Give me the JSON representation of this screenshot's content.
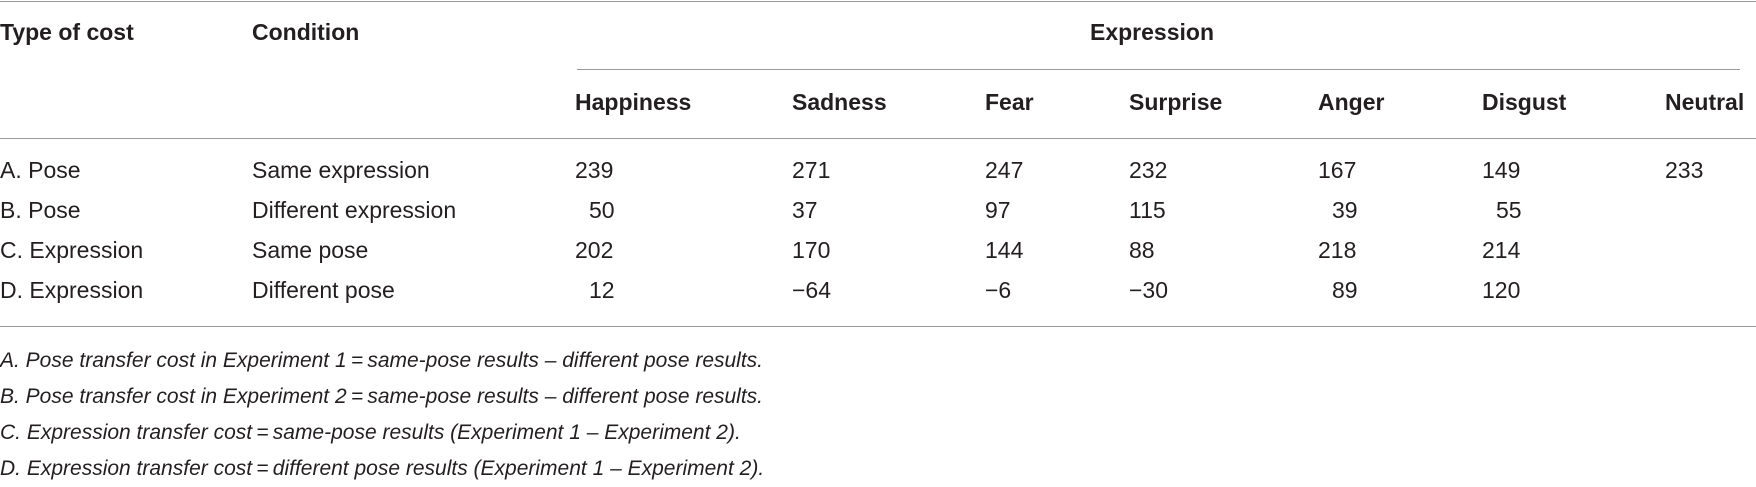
{
  "table": {
    "header": {
      "type_of_cost": "Type of cost",
      "condition": "Condition",
      "expression_group": "Expression",
      "expressions": [
        "Happiness",
        "Sadness",
        "Fear",
        "Surprise",
        "Anger",
        "Disgust",
        "Neutral"
      ]
    },
    "rows": [
      {
        "type": "A. Pose",
        "condition": "Same expression",
        "values": [
          "239",
          "271",
          "247",
          "232",
          "167",
          "149",
          "233"
        ]
      },
      {
        "type": "B. Pose",
        "condition": "Different expression",
        "values": [
          "50",
          "37",
          "97",
          "115",
          "39",
          "55",
          ""
        ]
      },
      {
        "type": "C. Expression",
        "condition": "Same pose",
        "values": [
          "202",
          "170",
          "144",
          "88",
          "218",
          "214",
          ""
        ]
      },
      {
        "type": "D. Expression",
        "condition": "Different pose",
        "values": [
          "12",
          "−64",
          "−6",
          "−30",
          "89",
          "120",
          ""
        ]
      }
    ]
  },
  "footnotes": [
    "A. Pose transfer cost in Experiment 1 = same-pose results – different pose results.",
    "B. Pose transfer cost in Experiment 2 = same-pose results – different pose results.",
    "C. Expression transfer cost = same-pose results (Experiment 1 – Experiment 2).",
    "D. Expression transfer cost = different pose results (Experiment 1 – Experiment 2)."
  ]
}
